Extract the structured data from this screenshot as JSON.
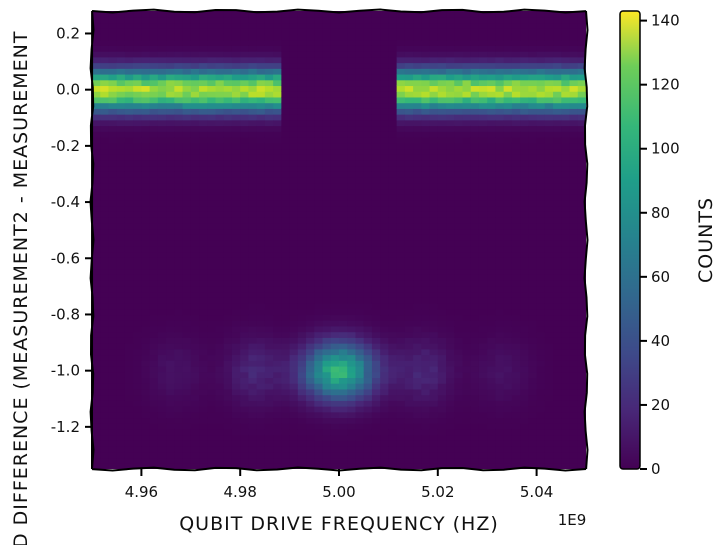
{
  "chart_data": {
    "type": "heatmap",
    "title": "",
    "xlabel": "QUBIT DRIVE FREQUENCY (HZ)",
    "ylabel": "D DIFFERENCE (MEASUREMENT2 - MEASUREMENT",
    "x_offset_label": "1E9",
    "xlim": [
      4.95,
      5.05
    ],
    "ylim": [
      -1.35,
      0.28
    ],
    "x_ticks": [
      4.96,
      4.98,
      5.0,
      5.02,
      5.04
    ],
    "x_tick_labels": [
      "4.96",
      "4.98",
      "5.00",
      "5.02",
      "5.04"
    ],
    "y_ticks": [
      0.2,
      0.0,
      -0.2,
      -0.4,
      -0.6,
      -0.8,
      -1.0,
      -1.2
    ],
    "y_tick_labels": [
      "0.2",
      "0.0",
      "-0.2",
      "-0.4",
      "-0.6",
      "-0.8",
      "-1.0",
      "-1.2"
    ],
    "colorbar": {
      "label": "COUNTS",
      "range": [
        0,
        143
      ],
      "ticks": [
        0,
        20,
        40,
        60,
        80,
        100,
        120,
        140
      ],
      "tick_labels": [
        "0",
        "20",
        "40",
        "60",
        "80",
        "100",
        "120",
        "140"
      ],
      "colormap": "viridis"
    },
    "features": [
      {
        "name": "upper band",
        "x_range": [
          4.95,
          5.05
        ],
        "y_center": 0.0,
        "y_width": 0.05,
        "peak_counts": 135,
        "dip_x": [
          4.989,
          5.011
        ]
      },
      {
        "name": "lower blob",
        "x_center": 5.0,
        "y_center": -1.0,
        "x_width": 0.005,
        "y_width": 0.07,
        "peak_counts": 100
      },
      {
        "name": "side lobe",
        "x_center": 4.983,
        "y_center": -1.0,
        "peak_counts": 18
      },
      {
        "name": "side lobe",
        "x_center": 5.017,
        "y_center": -1.0,
        "peak_counts": 18
      },
      {
        "name": "side lobe",
        "x_center": 4.967,
        "y_center": -1.0,
        "peak_counts": 8
      },
      {
        "name": "side lobe",
        "x_center": 5.033,
        "y_center": -1.0,
        "peak_counts": 8
      }
    ]
  }
}
